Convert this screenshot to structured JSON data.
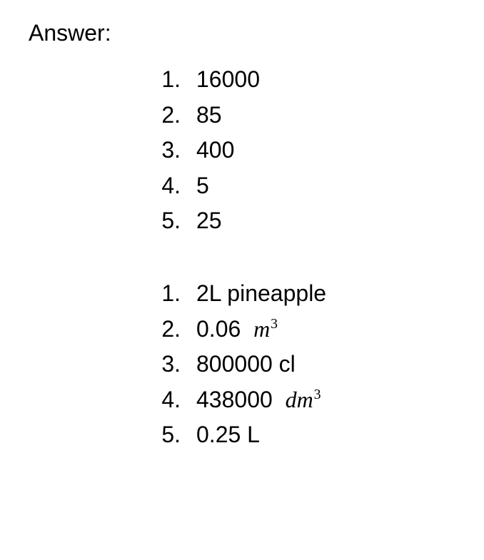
{
  "heading": "Answer:",
  "lists": [
    {
      "items": [
        {
          "n": "1.",
          "v": "16000",
          "m": null
        },
        {
          "n": "2.",
          "v": "85",
          "m": null
        },
        {
          "n": "3.",
          "v": "400",
          "m": null
        },
        {
          "n": "4.",
          "v": "5",
          "m": null
        },
        {
          "n": "5.",
          "v": "25",
          "m": null
        }
      ]
    },
    {
      "items": [
        {
          "n": "1.",
          "v": "2L pineapple",
          "m": null
        },
        {
          "n": "2.",
          "v": "0.06 ",
          "m": {
            "sym": "m",
            "sup": "3"
          }
        },
        {
          "n": "3.",
          "v": "800000 cl",
          "m": null
        },
        {
          "n": "4.",
          "v": "438000 ",
          "m": {
            "sym": "dm",
            "sup": "3"
          }
        },
        {
          "n": "5.",
          "v": "0.25 L",
          "m": null
        }
      ]
    }
  ],
  "style": {
    "font_family": "Comic Sans MS",
    "font_size_pt": 24,
    "math_font_family": "Cambria Math",
    "text_color": "#000000",
    "background_color": "#ffffff"
  }
}
